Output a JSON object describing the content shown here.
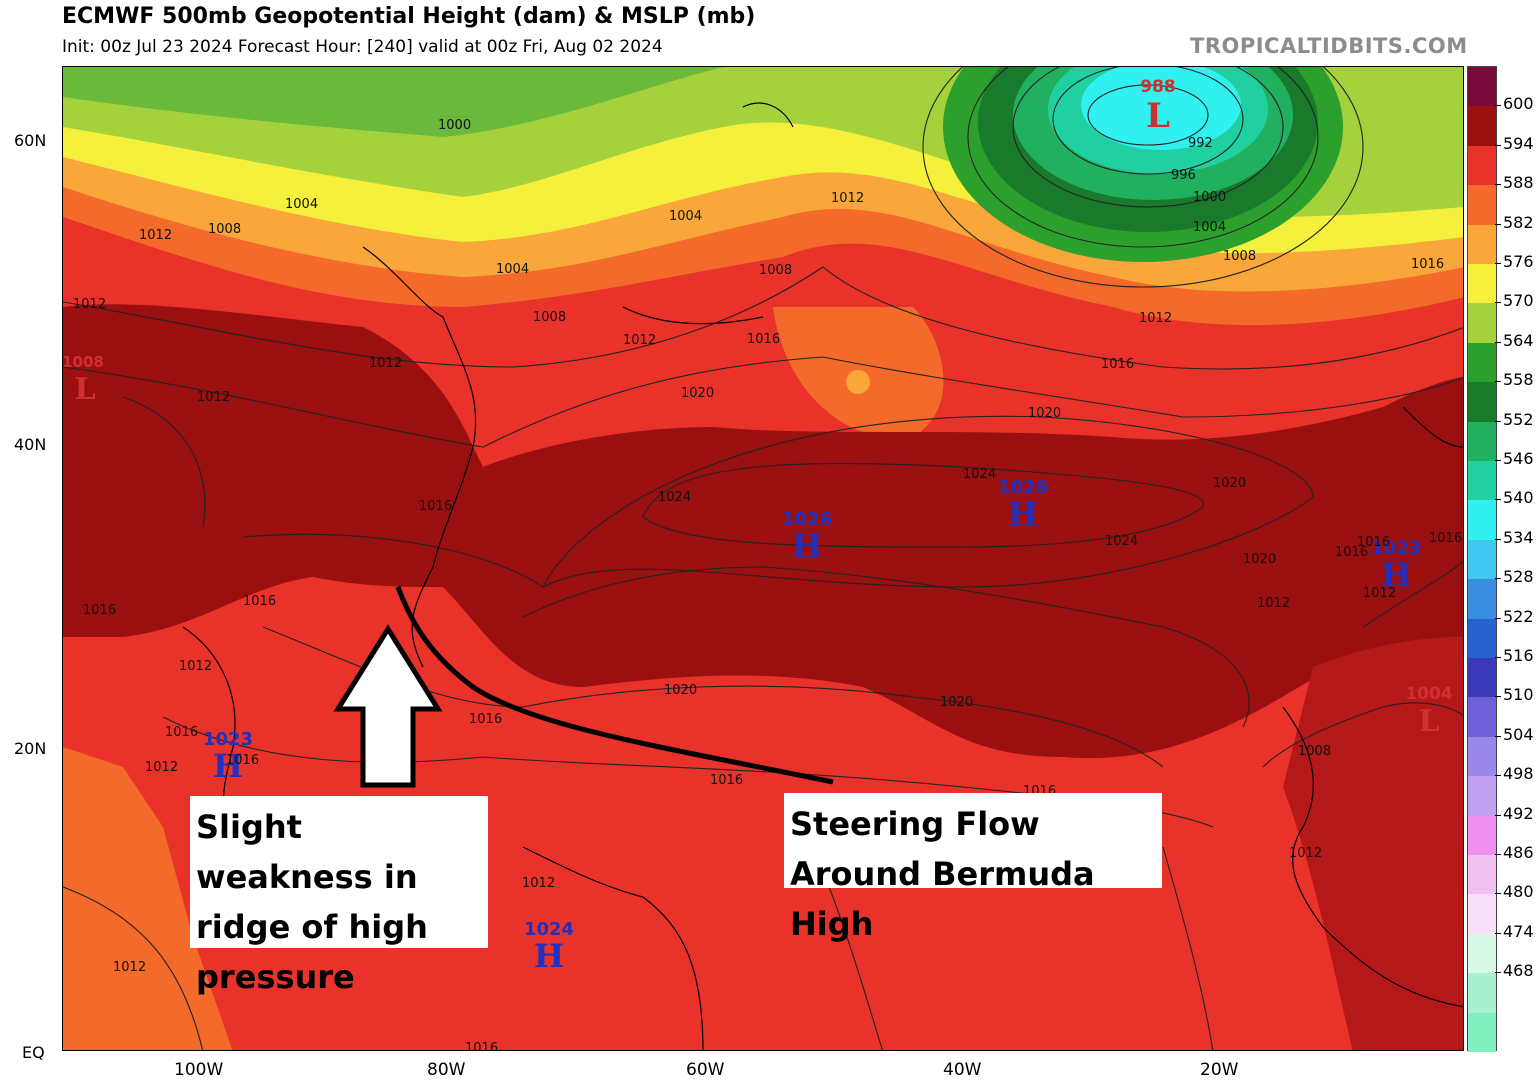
{
  "header": {
    "title": "ECMWF 500mb Geopotential Height (dam) & MSLP (mb)",
    "subtitle": "Init: 00z Jul 23 2024   Forecast Hour: [240]   valid at 00z Fri, Aug 02 2024",
    "credit": "TROPICALTIDBITS.COM"
  },
  "axes": {
    "lat_labels": [
      "60N",
      "40N",
      "20N",
      "EQ"
    ],
    "lon_labels": [
      "100W",
      "80W",
      "60W",
      "40W",
      "20W"
    ]
  },
  "colorbar": {
    "labels": [
      "600",
      "594",
      "588",
      "582",
      "576",
      "570",
      "564",
      "558",
      "552",
      "546",
      "540",
      "534",
      "528",
      "522",
      "516",
      "510",
      "504",
      "498",
      "492",
      "486",
      "480",
      "474",
      "468"
    ],
    "colors": [
      "#7a0a3a",
      "#9a0f0f",
      "#e8322a",
      "#f46a2a",
      "#f9a73a",
      "#f5f03c",
      "#a5d23c",
      "#2ca02c",
      "#1a7a2c",
      "#20b060",
      "#20d0a0",
      "#30f0f0",
      "#40c8f0",
      "#3a8ee0",
      "#2860d0",
      "#3a3ab8",
      "#7060d8",
      "#9a88e8",
      "#c0a0f0",
      "#f090f0",
      "#f0c0f0",
      "#f8e0f8",
      "#d8f8e8",
      "#a8f0d0",
      "#80f0c0"
    ]
  },
  "pressure_centers": [
    {
      "type": "L",
      "value": "988",
      "color": "#d03030"
    },
    {
      "type": "L",
      "value": "1008",
      "color": "#d03030"
    },
    {
      "type": "L",
      "value": "1004",
      "color": "#d03030"
    },
    {
      "type": "H",
      "value": "1026",
      "color": "#2030c0"
    },
    {
      "type": "H",
      "value": "1026",
      "color": "#2030c0"
    },
    {
      "type": "H",
      "value": "1023",
      "color": "#2030c0"
    },
    {
      "type": "H",
      "value": "1023",
      "color": "#2030c0"
    },
    {
      "type": "H",
      "value": "1024",
      "color": "#2030c0"
    }
  ],
  "isobar_labels": [
    "1000",
    "1004",
    "1012",
    "1008",
    "1004",
    "1004",
    "1008",
    "1012",
    "1012",
    "1016",
    "1012",
    "1008",
    "1012",
    "1012",
    "1012",
    "1020",
    "1016",
    "1016",
    "1024",
    "1024",
    "1024",
    "1020",
    "1020",
    "1016",
    "1012",
    "1016",
    "1016",
    "1012",
    "1016",
    "1020",
    "1012",
    "1016",
    "1016",
    "1016",
    "1016",
    "1020",
    "1016",
    "1012",
    "1012",
    "1016",
    "1008",
    "1012",
    "1016",
    "992",
    "996",
    "1000",
    "1004",
    "1008",
    "1012",
    "1016",
    "1020"
  ],
  "annotations": {
    "left": "Slight weakness in ridge of high pressure",
    "right": "Steering Flow Around Bermuda High"
  }
}
